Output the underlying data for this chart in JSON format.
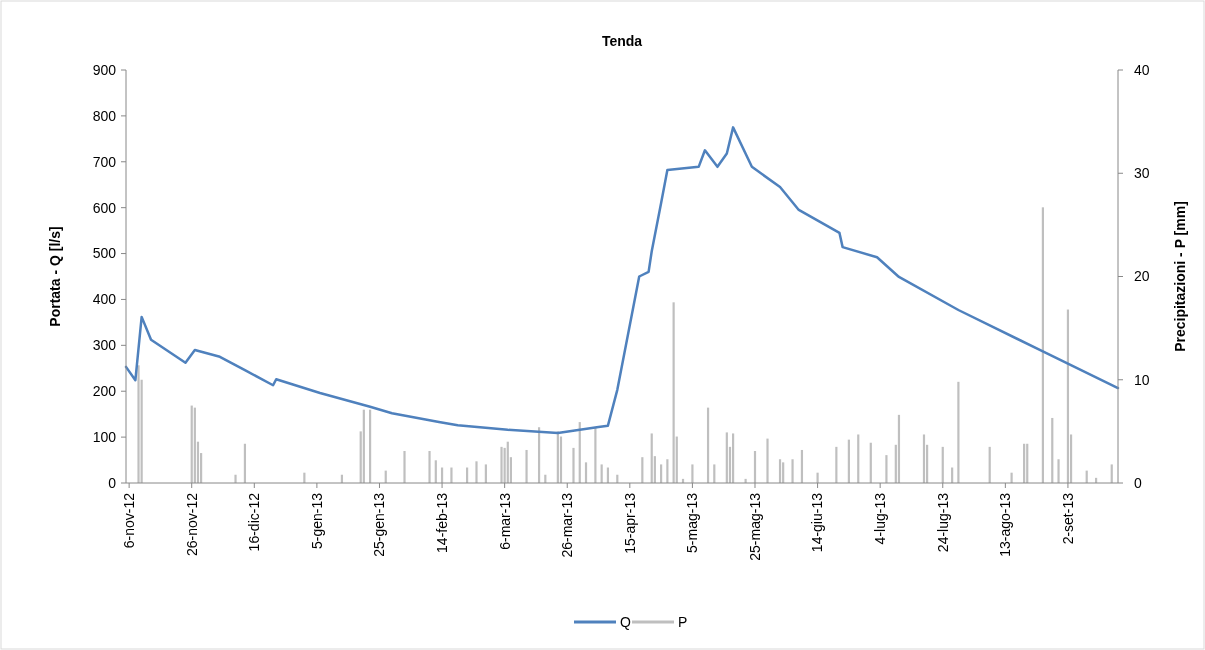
{
  "chart_data": {
    "type": "line",
    "title": "Tenda",
    "ylabel": "Portata - Q [l/s]",
    "y2label": "Precipitazioni - P [mm]",
    "xlim": [
      "2012-11-05",
      "2013-09-18"
    ],
    "xticks": [
      {
        "value": "2012-11-06",
        "label": "6-nov-12"
      },
      {
        "value": "2012-11-26",
        "label": "26-nov-12"
      },
      {
        "value": "2012-12-16",
        "label": "16-dic-12"
      },
      {
        "value": "2013-01-05",
        "label": "5-gen-13"
      },
      {
        "value": "2013-01-25",
        "label": "25-gen-13"
      },
      {
        "value": "2013-02-14",
        "label": "14-feb-13"
      },
      {
        "value": "2013-03-06",
        "label": "6-mar-13"
      },
      {
        "value": "2013-03-26",
        "label": "26-mar-13"
      },
      {
        "value": "2013-04-15",
        "label": "15-apr-13"
      },
      {
        "value": "2013-05-05",
        "label": "5-mag-13"
      },
      {
        "value": "2013-05-25",
        "label": "25-mag-13"
      },
      {
        "value": "2013-06-14",
        "label": "14-giu-13"
      },
      {
        "value": "2013-07-04",
        "label": "4-lug-13"
      },
      {
        "value": "2013-07-24",
        "label": "24-lug-13"
      },
      {
        "value": "2013-08-13",
        "label": "13-ago-13"
      },
      {
        "value": "2013-09-02",
        "label": "2-set-13"
      }
    ],
    "ylim": [
      0,
      900
    ],
    "yticks": [
      0,
      100,
      200,
      300,
      400,
      500,
      600,
      700,
      800,
      900
    ],
    "y2lim": [
      0,
      40
    ],
    "y2ticks": [
      0,
      10,
      20,
      30,
      40
    ],
    "grid": false,
    "legend": "bottom",
    "series": [
      {
        "name": "P",
        "type": "bar",
        "axis": "y2",
        "color": "#bfbfbf",
        "x": [
          "2012-11-09",
          "2012-11-10",
          "2012-11-26",
          "2012-11-27",
          "2012-11-28",
          "2012-11-29",
          "2012-12-10",
          "2012-12-13",
          "2013-01-01",
          "2013-01-13",
          "2013-01-19",
          "2013-01-20",
          "2013-01-22",
          "2013-01-27",
          "2013-02-02",
          "2013-02-10",
          "2013-02-12",
          "2013-02-14",
          "2013-02-17",
          "2013-02-22",
          "2013-02-25",
          "2013-02-28",
          "2013-03-05",
          "2013-03-06",
          "2013-03-07",
          "2013-03-08",
          "2013-03-13",
          "2013-03-17",
          "2013-03-19",
          "2013-03-23",
          "2013-03-24",
          "2013-03-28",
          "2013-03-30",
          "2013-04-01",
          "2013-04-04",
          "2013-04-06",
          "2013-04-08",
          "2013-04-11",
          "2013-04-19",
          "2013-04-22",
          "2013-04-23",
          "2013-04-25",
          "2013-04-27",
          "2013-04-29",
          "2013-04-30",
          "2013-05-02",
          "2013-05-05",
          "2013-05-10",
          "2013-05-12",
          "2013-05-16",
          "2013-05-17",
          "2013-05-18",
          "2013-05-22",
          "2013-05-25",
          "2013-05-29",
          "2013-06-02",
          "2013-06-03",
          "2013-06-06",
          "2013-06-09",
          "2013-06-14",
          "2013-06-20",
          "2013-06-24",
          "2013-06-27",
          "2013-07-01",
          "2013-07-06",
          "2013-07-09",
          "2013-07-10",
          "2013-07-18",
          "2013-07-19",
          "2013-07-24",
          "2013-07-27",
          "2013-07-29",
          "2013-08-08",
          "2013-08-15",
          "2013-08-19",
          "2013-08-20",
          "2013-08-25",
          "2013-08-28",
          "2013-08-30",
          "2013-09-02",
          "2013-09-03",
          "2013-09-08",
          "2013-09-11",
          "2013-09-16"
        ],
        "values": [
          11.4,
          10,
          7.5,
          7.3,
          4,
          2.9,
          0.8,
          3.8,
          1.0,
          0.8,
          5,
          7.1,
          7.1,
          1.2,
          3.1,
          3.1,
          2.2,
          1.5,
          1.5,
          1.5,
          2.1,
          1.8,
          3.5,
          3.4,
          4.0,
          2.5,
          3.2,
          5.4,
          0.8,
          5.0,
          4.5,
          3.4,
          5.9,
          2.0,
          5.4,
          1.8,
          1.5,
          0.8,
          2.5,
          4.8,
          2.6,
          1.8,
          2.3,
          17.5,
          4.5,
          0.4,
          1.8,
          7.3,
          1.8,
          4.9,
          3.5,
          4.8,
          0.4,
          3.1,
          4.3,
          2.3,
          2.0,
          2.3,
          3.2,
          1.0,
          3.5,
          4.2,
          4.7,
          3.9,
          2.7,
          3.7,
          6.6,
          4.7,
          3.7,
          3.5,
          1.5,
          9.8,
          3.5,
          1.0,
          3.8,
          3.8,
          26.7,
          6.3,
          2.3,
          16.8,
          4.7,
          1.2,
          0.5,
          1.8
        ]
      },
      {
        "name": "Q",
        "color": "#4f81bd",
        "x": [
          "2012-11-05",
          "2012-11-08",
          "2012-11-10",
          "2012-11-13",
          "2012-11-24",
          "2012-11-27",
          "2012-12-05",
          "2012-12-13",
          "2012-12-22",
          "2012-12-23",
          "2013-01-06",
          "2013-01-22",
          "2013-01-29",
          "2013-02-13",
          "2013-02-19",
          "2013-03-07",
          "2013-03-23",
          "2013-04-05",
          "2013-04-08",
          "2013-04-11",
          "2013-04-18",
          "2013-04-21",
          "2013-04-22",
          "2013-04-25",
          "2013-04-27",
          "2013-05-07",
          "2013-05-09",
          "2013-05-13",
          "2013-05-16",
          "2013-05-18",
          "2013-05-24",
          "2013-06-02",
          "2013-06-08",
          "2013-06-21",
          "2013-06-22",
          "2013-07-03",
          "2013-07-10",
          "2013-07-29",
          "2013-08-24",
          "2013-09-18"
        ],
        "values": [
          253,
          224,
          362,
          312,
          262,
          290,
          275,
          246,
          213,
          226,
          196,
          166,
          152,
          133,
          126,
          116,
          109,
          122,
          125,
          203,
          450,
          460,
          505,
          610,
          682,
          689,
          725,
          689,
          718,
          775,
          689,
          645,
          595,
          545,
          514,
          492,
          449,
          377,
          290,
          207
        ]
      }
    ]
  }
}
